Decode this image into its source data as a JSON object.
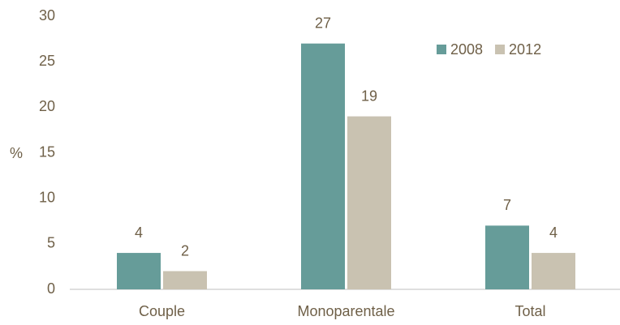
{
  "chart_data": {
    "type": "bar",
    "ylabel": "%",
    "categories": [
      "Couple",
      "Monoparentale",
      "Total"
    ],
    "series": [
      {
        "name": "2008",
        "color": "#669c99",
        "values": [
          4,
          27,
          7
        ]
      },
      {
        "name": "2012",
        "color": "#c9c2b1",
        "values": [
          2,
          19,
          4
        ]
      }
    ],
    "ylim": [
      0,
      30
    ],
    "yticks": [
      0,
      5,
      10,
      15,
      20,
      25,
      30
    ],
    "grid": false,
    "legend": "top-right",
    "data_labels": true
  }
}
